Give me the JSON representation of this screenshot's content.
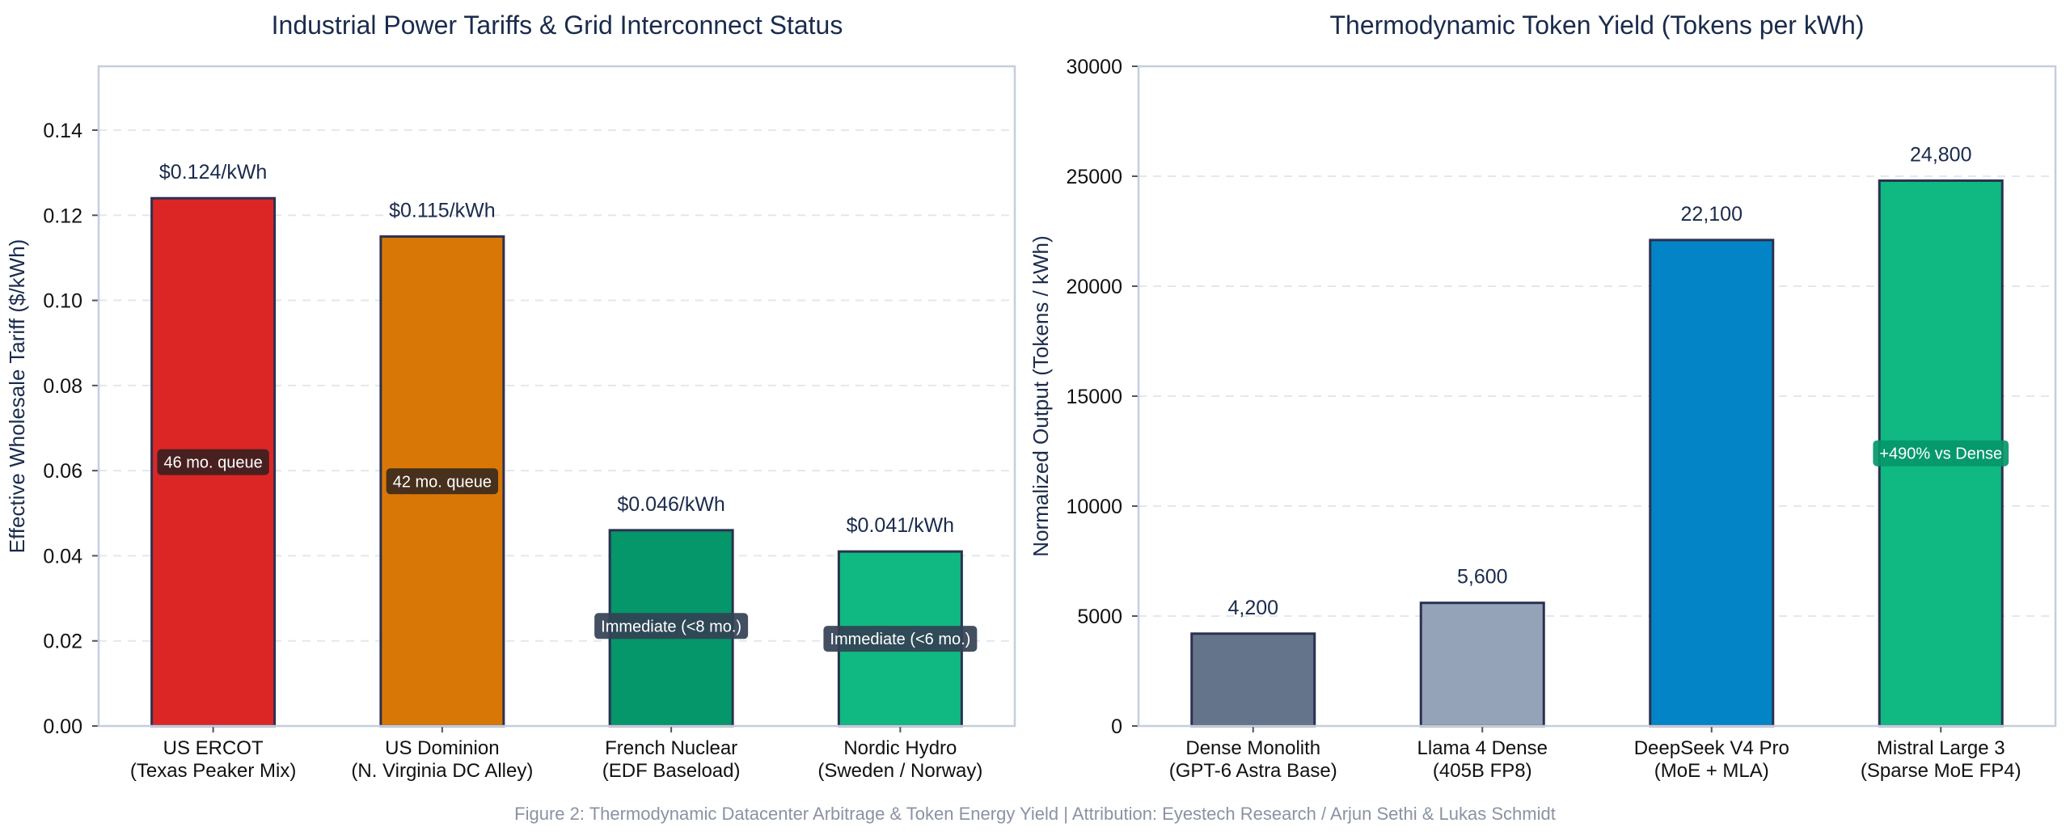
{
  "caption": "Figure 2: Thermodynamic Datacenter Arbitrage & Token Energy Yield | Attribution: Eyestech Research / Arjun Sethi & Lukas Schmidt",
  "colors": {
    "title": "#1a2b4c",
    "axis": "#c5cedc",
    "grid": "#e3e7ee",
    "bar_edge": "#2b3150",
    "badge_bg": "#3b2b2b",
    "badge_text": "#ffffff"
  },
  "chart_data": [
    {
      "type": "bar",
      "title": "Industrial Power Tariffs & Grid Interconnect Status",
      "xlabel": "",
      "ylabel": "Effective Wholesale Tariff ($/kWh)",
      "ylim": [
        0,
        0.155
      ],
      "yticks": [
        "0.00",
        "0.02",
        "0.04",
        "0.06",
        "0.08",
        "0.10",
        "0.12",
        "0.14"
      ],
      "ytick_values": [
        0,
        0.02,
        0.04,
        0.06,
        0.08,
        0.1,
        0.12,
        0.14
      ],
      "grid": true,
      "categories": [
        [
          "US ERCOT",
          "(Texas Peaker Mix)"
        ],
        [
          "US Dominion",
          "(N. Virginia DC Alley)"
        ],
        [
          "French Nuclear",
          "(EDF Baseload)"
        ],
        [
          "Nordic Hydro",
          "(Sweden / Norway)"
        ]
      ],
      "values": [
        0.124,
        0.115,
        0.046,
        0.041
      ],
      "value_labels": [
        "$0.124/kWh",
        "$0.115/kWh",
        "$0.046/kWh",
        "$0.041/kWh"
      ],
      "colors": [
        "#dc2626",
        "#d97706",
        "#059669",
        "#10b981"
      ],
      "annotations": [
        {
          "text": "46 mo. queue",
          "y": 0.062,
          "bg": "#3b2020"
        },
        {
          "text": "42 mo. queue",
          "y": 0.0575,
          "bg": "#3b2a1e"
        },
        {
          "text": "Immediate (<8 mo.)",
          "y": 0.0235,
          "bg": "#334155"
        },
        {
          "text": "Immediate (<6 mo.)",
          "y": 0.0205,
          "bg": "#334155"
        }
      ]
    },
    {
      "type": "bar",
      "title": "Thermodynamic Token Yield (Tokens per kWh)",
      "xlabel": "",
      "ylabel": "Normalized Output (Tokens / kWh)",
      "ylim": [
        0,
        30000
      ],
      "yticks": [
        "0",
        "5000",
        "10000",
        "15000",
        "20000",
        "25000",
        "30000"
      ],
      "ytick_values": [
        0,
        5000,
        10000,
        15000,
        20000,
        25000,
        30000
      ],
      "grid": true,
      "categories": [
        [
          "Dense Monolith",
          "(GPT-6 Astra Base)"
        ],
        [
          "Llama 4 Dense",
          "(405B FP8)"
        ],
        [
          "DeepSeek V4 Pro",
          "(MoE + MLA)"
        ],
        [
          "Mistral Large 3",
          "(Sparse MoE FP4)"
        ]
      ],
      "values": [
        4200,
        5600,
        22100,
        24800
      ],
      "value_labels": [
        "4,200",
        "5,600",
        "22,100",
        "24,800"
      ],
      "colors": [
        "#64748b",
        "#94a3b8",
        "#0284c7",
        "#10b981"
      ],
      "annotations": [
        {
          "text": "+490% vs Dense",
          "bar": 3,
          "y": 12400,
          "bg": "#059669"
        }
      ]
    }
  ]
}
